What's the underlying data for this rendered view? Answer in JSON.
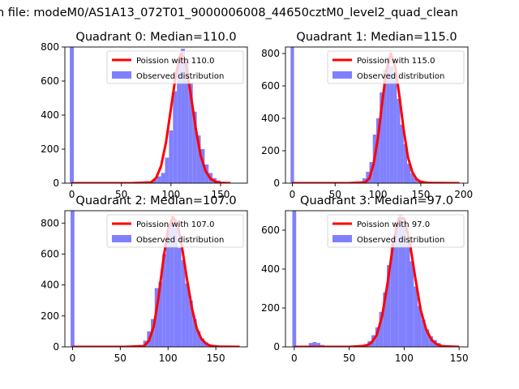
{
  "figure": {
    "title": "n file: modeM0/AS1A13_072T01_9000006008_44650cztM0_level2_quad_clean"
  },
  "colors": {
    "hist": "#8080ff",
    "model": "#ff0000"
  },
  "chart_data": [
    {
      "type": "bar",
      "title": "Quadrant 0: Median=110.0",
      "xlim": [
        -7,
        177
      ],
      "ylim": [
        0,
        800
      ],
      "xticks": [
        0,
        50,
        100,
        150
      ],
      "yticks": [
        0,
        200,
        400,
        600,
        800
      ],
      "legend": {
        "placement": "top-right",
        "entries": [
          "Poission with 110.0",
          "Observed distribution"
        ]
      },
      "bin_width": 4,
      "x": [
        0,
        76,
        80,
        84,
        88,
        92,
        96,
        100,
        104,
        108,
        112,
        116,
        120,
        124,
        128,
        132,
        136,
        140,
        144,
        148,
        152,
        156,
        160,
        164,
        168
      ],
      "values": [
        880,
        5,
        12,
        20,
        40,
        60,
        150,
        310,
        540,
        730,
        790,
        720,
        590,
        420,
        280,
        200,
        110,
        60,
        30,
        15,
        8,
        4,
        2,
        1,
        0
      ],
      "series": [
        {
          "name": "Poission with 110.0",
          "x": [
            0,
            60,
            80,
            85,
            90,
            95,
            100,
            105,
            110,
            115,
            120,
            125,
            130,
            135,
            140,
            145,
            150,
            160
          ],
          "y": [
            0,
            0,
            5,
            30,
            100,
            240,
            440,
            640,
            760,
            700,
            520,
            320,
            160,
            70,
            25,
            8,
            2,
            0
          ]
        }
      ]
    },
    {
      "type": "bar",
      "title": "Quadrant 1: Median=115.0",
      "xlim": [
        -8,
        205
      ],
      "ylim": [
        0,
        840
      ],
      "xticks": [
        0,
        50,
        100,
        150,
        200
      ],
      "yticks": [
        0,
        200,
        400,
        600,
        800
      ],
      "legend": {
        "placement": "top-right",
        "entries": [
          "Poission with 115.0",
          "Observed distribution"
        ]
      },
      "bin_width": 4,
      "x": [
        0,
        80,
        84,
        88,
        92,
        96,
        100,
        104,
        108,
        112,
        116,
        120,
        124,
        128,
        132,
        136,
        140,
        144,
        148,
        152,
        156
      ],
      "values": [
        900,
        10,
        30,
        70,
        130,
        300,
        400,
        560,
        700,
        780,
        720,
        650,
        520,
        360,
        240,
        120,
        60,
        30,
        12,
        5,
        2
      ],
      "series": [
        {
          "name": "Poission with 115.0",
          "x": [
            0,
            65,
            85,
            90,
            95,
            100,
            105,
            110,
            115,
            120,
            125,
            130,
            135,
            140,
            145,
            150,
            160,
            195
          ],
          "y": [
            0,
            0,
            5,
            30,
            120,
            280,
            500,
            700,
            800,
            720,
            540,
            330,
            160,
            70,
            25,
            8,
            1,
            0
          ]
        }
      ]
    },
    {
      "type": "bar",
      "title": "Quadrant 2: Median=107.0",
      "xlim": [
        -8,
        183
      ],
      "ylim": [
        0,
        880
      ],
      "xticks": [
        0,
        50,
        100,
        150
      ],
      "yticks": [
        0,
        200,
        400,
        600,
        800
      ],
      "legend": {
        "placement": "top-right",
        "entries": [
          "Poission with 107.0",
          "Observed distribution"
        ]
      },
      "bin_width": 4,
      "x": [
        0,
        72,
        76,
        80,
        84,
        88,
        92,
        96,
        100,
        104,
        108,
        112,
        116,
        120,
        124,
        128,
        132,
        136,
        140,
        144,
        148,
        152,
        156
      ],
      "values": [
        900,
        10,
        40,
        100,
        180,
        380,
        420,
        600,
        750,
        820,
        770,
        640,
        560,
        410,
        300,
        180,
        100,
        55,
        30,
        14,
        6,
        3,
        1
      ],
      "series": [
        {
          "name": "Poission with 107.0",
          "x": [
            0,
            55,
            75,
            80,
            85,
            90,
            95,
            100,
            105,
            110,
            115,
            120,
            125,
            130,
            135,
            140,
            145,
            155,
            175
          ],
          "y": [
            0,
            0,
            5,
            40,
            130,
            320,
            560,
            760,
            840,
            790,
            630,
            430,
            250,
            120,
            50,
            20,
            6,
            1,
            0
          ]
        }
      ]
    },
    {
      "type": "bar",
      "title": "Quadrant 3: Median=97.0",
      "xlim": [
        -8,
        158
      ],
      "ylim": [
        0,
        700
      ],
      "xticks": [
        0,
        50,
        100,
        150
      ],
      "yticks": [
        0,
        200,
        400,
        600
      ],
      "legend": {
        "placement": "top-right",
        "entries": [
          "Poission with 97.0",
          "Observed distribution"
        ]
      },
      "bin_width": 3.5,
      "x": [
        0,
        15,
        18.5,
        22,
        25.5,
        58,
        61.5,
        65,
        68.5,
        72,
        75.5,
        79,
        82.5,
        86,
        89.5,
        93,
        96.5,
        100,
        103.5,
        107,
        110.5,
        114,
        117.5,
        121,
        124.5,
        128,
        131.5,
        135,
        138.5
      ],
      "values": [
        700,
        20,
        25,
        20,
        10,
        5,
        8,
        15,
        30,
        60,
        100,
        180,
        280,
        420,
        530,
        620,
        680,
        620,
        540,
        440,
        310,
        210,
        140,
        90,
        55,
        35,
        20,
        10,
        5
      ],
      "series": [
        {
          "name": "Poission with 97.0",
          "x": [
            0,
            50,
            65,
            70,
            75,
            80,
            85,
            90,
            95,
            100,
            105,
            110,
            115,
            120,
            125,
            130,
            135,
            150
          ],
          "y": [
            0,
            0,
            5,
            20,
            60,
            160,
            330,
            530,
            660,
            660,
            540,
            360,
            190,
            90,
            35,
            12,
            3,
            0
          ]
        }
      ]
    }
  ]
}
